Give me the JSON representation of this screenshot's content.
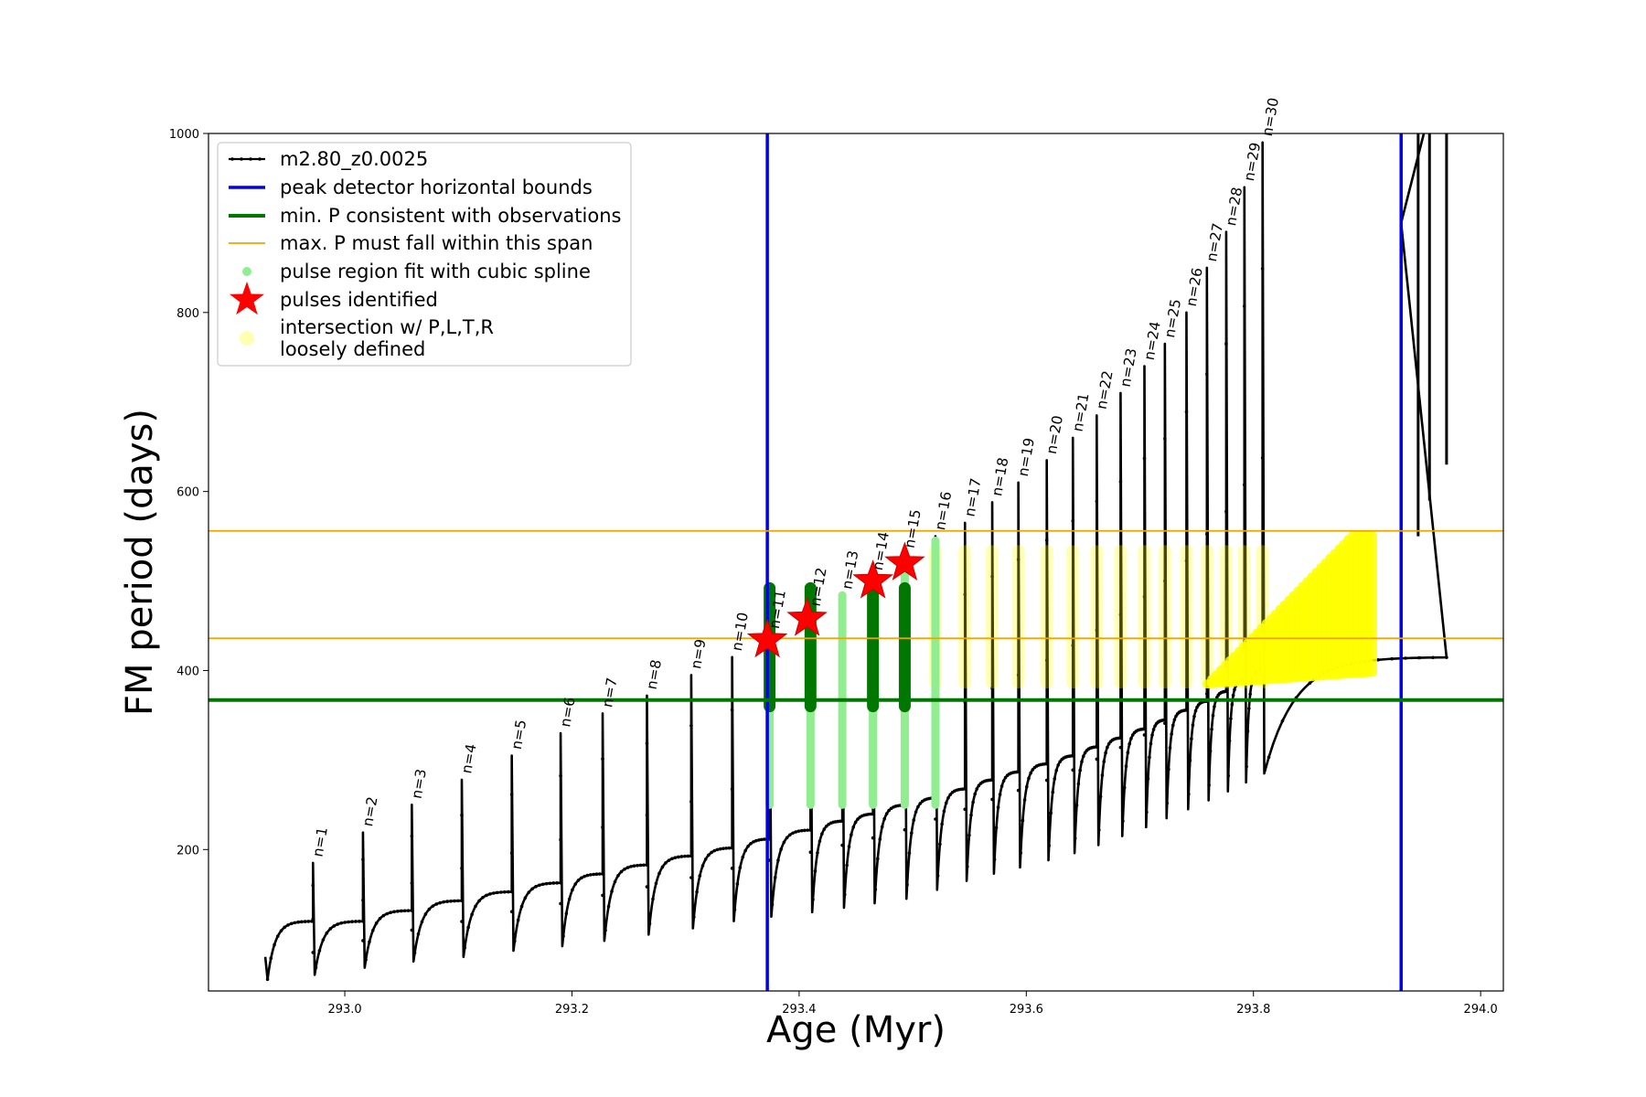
{
  "chart_data": {
    "type": "line",
    "title": "",
    "xlabel": "Age (Myr)",
    "ylabel": "FM period (days)",
    "xlim": [
      292.88,
      294.02
    ],
    "ylim": [
      42,
      1000
    ],
    "xticks": [
      293.0,
      293.2,
      293.4,
      293.6,
      293.8,
      294.0
    ],
    "xtick_labels": [
      "293.0",
      "293.2",
      "293.4",
      "293.6",
      "293.8",
      "294.0"
    ],
    "yticks": [
      200,
      400,
      600,
      800,
      1000
    ],
    "ytick_labels": [
      "200",
      "400",
      "600",
      "800",
      "1000"
    ],
    "grid": false,
    "legend_position": "top-left",
    "colors": {
      "model": "#000000",
      "peak_bounds": "#0000ee",
      "min_period": "#007700",
      "max_period_span": "#f0a400",
      "pulse_spline": "#90ee90",
      "pulses_identified": "#ff0000",
      "loose_intersection": "#ffff00"
    },
    "series": [
      {
        "name": "m2.80_z0.0025",
        "kind": "line-with-points"
      },
      {
        "name": "peak detector horizontal bounds",
        "kind": "vertical-lines",
        "x": [
          293.372,
          293.93
        ]
      },
      {
        "name": "min. P consistent with observations",
        "kind": "horizontal-line",
        "y": [
          367
        ]
      },
      {
        "name": "max. P must fall within this span",
        "kind": "horizontal-lines",
        "y": [
          436,
          556
        ]
      },
      {
        "name": "pulse region fit with cubic spline",
        "kind": "points"
      },
      {
        "name": "pulses identified",
        "kind": "star-markers",
        "x": [
          293.372,
          293.407,
          293.465,
          293.493
        ],
        "y": [
          434,
          458,
          500,
          520
        ]
      },
      {
        "name": "intersection w/ P,L,T,R\nloosely defined",
        "kind": "points"
      }
    ],
    "pulses": {
      "labels": [
        "n=1",
        "n=2",
        "n=3",
        "n=4",
        "n=5",
        "n=6",
        "n=7",
        "n=8",
        "n=9",
        "n=10",
        "n=11",
        "n=12",
        "n=13",
        "n=14",
        "n=15",
        "n=16",
        "n=17",
        "n=18",
        "n=19",
        "n=20",
        "n=21",
        "n=22",
        "n=23",
        "n=24",
        "n=25",
        "n=26",
        "n=27",
        "n=28",
        "n=29",
        "n=30"
      ],
      "age": [
        292.972,
        293.016,
        293.059,
        293.103,
        293.147,
        293.19,
        293.227,
        293.266,
        293.305,
        293.341,
        293.374,
        293.41,
        293.438,
        293.465,
        293.493,
        293.52,
        293.546,
        293.57,
        293.593,
        293.618,
        293.641,
        293.662,
        293.683,
        293.704,
        293.722,
        293.741,
        293.759,
        293.776,
        293.792,
        293.808
      ],
      "peak_period": [
        185,
        219,
        250,
        278,
        305,
        330,
        352,
        372,
        395,
        415,
        440,
        465,
        484,
        505,
        530,
        550,
        565,
        588,
        610,
        635,
        660,
        685,
        710,
        740,
        765,
        800,
        850,
        890,
        940,
        990
      ],
      "trough_period": [
        60,
        68,
        75,
        80,
        87,
        92,
        98,
        105,
        112,
        120,
        125,
        130,
        135,
        140,
        145,
        155,
        165,
        173,
        180,
        188,
        196,
        205,
        215,
        225,
        235,
        245,
        255,
        265,
        275,
        285
      ],
      "plateau_period": [
        120,
        132,
        143,
        153,
        163,
        173,
        183,
        193,
        202,
        212,
        222,
        232,
        240,
        250,
        258,
        268,
        278,
        287,
        296,
        305,
        315,
        325,
        335,
        345,
        356,
        366,
        377,
        390,
        402,
        415
      ]
    },
    "start_age": 292.93,
    "start_period": 80,
    "final_age": 293.97
  },
  "legend": {
    "entries": [
      {
        "label": "m2.80_z0.0025"
      },
      {
        "label": "peak detector horizontal bounds"
      },
      {
        "label": "min. P consistent with observations"
      },
      {
        "label": "max. P must fall within this span"
      },
      {
        "label": "pulse region fit with cubic spline"
      },
      {
        "label": "pulses identified"
      },
      {
        "label": "intersection w/ P,L,T,R"
      },
      {
        "label": "loosely defined"
      }
    ]
  }
}
